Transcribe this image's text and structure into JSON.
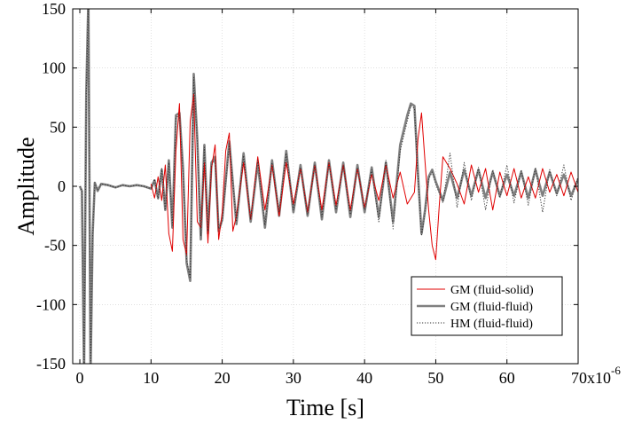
{
  "chart_data": {
    "type": "line",
    "title": "",
    "xlabel": "Time [s]",
    "ylabel": "Amplitude",
    "xlim": [
      -1,
      70
    ],
    "ylim": [
      -150,
      150
    ],
    "x_unit_exponent_label": "-6",
    "x_ticks": [
      0,
      10,
      20,
      30,
      40,
      50,
      60,
      70
    ],
    "x_tick_labels": [
      "0",
      "10",
      "20",
      "30",
      "40",
      "50",
      "60",
      "70x10"
    ],
    "y_ticks": [
      -150,
      -100,
      -50,
      0,
      50,
      100,
      150
    ],
    "y_tick_labels": [
      "-150",
      "-100",
      "-50",
      "0",
      "50",
      "100",
      "150"
    ],
    "grid": true,
    "legend_position": "bottom-right",
    "series": [
      {
        "name": "GM (fluid-solid)",
        "color": "#e00000",
        "style": "solid-thin",
        "x": [
          10.0,
          10.5,
          11.0,
          11.5,
          12.0,
          12.5,
          13.0,
          13.5,
          14.0,
          14.5,
          15.0,
          15.5,
          16.0,
          16.5,
          17.0,
          17.5,
          18.0,
          18.5,
          19.0,
          19.5,
          20.0,
          20.5,
          21.0,
          21.5,
          22.0,
          23.0,
          24.0,
          25.0,
          26.0,
          27.0,
          28.0,
          29.0,
          30.0,
          31.0,
          32.0,
          33.0,
          34.0,
          35.0,
          36.0,
          37.0,
          38.0,
          39.0,
          40.0,
          41.0,
          42.0,
          43.0,
          44.0,
          45.0,
          46.0,
          47.0,
          47.5,
          48.0,
          48.5,
          49.0,
          49.5,
          50.0,
          50.5,
          51.0,
          52.0,
          53.0,
          54.0,
          55.0,
          56.0,
          57.0,
          58.0,
          59.0,
          60.0,
          61.0,
          62.0,
          63.0,
          64.0,
          65.0,
          66.0,
          67.0,
          68.0,
          69.0,
          70.0
        ],
        "values": [
          2,
          -10,
          8,
          -12,
          18,
          -40,
          -55,
          30,
          70,
          -45,
          -58,
          55,
          78,
          -30,
          -35,
          20,
          -48,
          15,
          35,
          -45,
          -22,
          30,
          45,
          -38,
          -25,
          20,
          -28,
          25,
          -20,
          18,
          -25,
          20,
          -15,
          15,
          -22,
          18,
          -20,
          20,
          -16,
          18,
          -20,
          15,
          -18,
          10,
          -12,
          18,
          -10,
          12,
          -15,
          -5,
          40,
          62,
          20,
          -20,
          -50,
          -62,
          -15,
          25,
          15,
          2,
          -15,
          18,
          -5,
          15,
          -20,
          12,
          -8,
          15,
          -10,
          8,
          -10,
          15,
          -5,
          10,
          -8,
          12,
          -5
        ]
      },
      {
        "name": "GM (fluid-fluid)",
        "color": "#808080",
        "style": "solid-thick",
        "x": [
          0.0,
          0.3,
          0.6,
          0.9,
          1.2,
          1.5,
          1.8,
          2.1,
          2.5,
          3.0,
          4.0,
          5.0,
          6.0,
          7.0,
          8.0,
          9.0,
          10.0,
          10.5,
          11.0,
          11.5,
          12.0,
          12.5,
          13.0,
          13.5,
          14.0,
          14.5,
          15.0,
          15.5,
          16.0,
          16.5,
          17.0,
          17.5,
          18.0,
          18.5,
          19.0,
          19.5,
          20.0,
          21.0,
          22.0,
          23.0,
          24.0,
          25.0,
          26.0,
          27.0,
          28.0,
          29.0,
          30.0,
          31.0,
          32.0,
          33.0,
          34.0,
          35.0,
          36.0,
          37.0,
          38.0,
          39.0,
          40.0,
          41.0,
          42.0,
          43.0,
          44.0,
          45.0,
          46.0,
          46.5,
          47.0,
          47.5,
          48.0,
          48.5,
          49.0,
          49.5,
          50.0,
          51.0,
          52.0,
          53.0,
          54.0,
          55.0,
          56.0,
          57.0,
          58.0,
          59.0,
          60.0,
          61.0,
          62.0,
          63.0,
          64.0,
          65.0,
          66.0,
          67.0,
          68.0,
          69.0,
          70.0
        ],
        "values": [
          0,
          -4,
          -160,
          80,
          160,
          -160,
          -40,
          3,
          -4,
          2,
          1,
          -1,
          1,
          0,
          1,
          0,
          -2,
          5,
          -10,
          14,
          -20,
          22,
          -35,
          60,
          62,
          15,
          -65,
          -80,
          95,
          40,
          -45,
          35,
          -40,
          20,
          25,
          -38,
          -28,
          38,
          -32,
          28,
          -30,
          20,
          -35,
          22,
          -25,
          30,
          -22,
          18,
          -25,
          20,
          -28,
          22,
          -22,
          20,
          -26,
          18,
          -22,
          16,
          -26,
          20,
          -30,
          35,
          60,
          70,
          68,
          10,
          -40,
          -20,
          8,
          14,
          4,
          -12,
          12,
          -10,
          14,
          -8,
          14,
          -10,
          12,
          -8,
          10,
          -8,
          12,
          -10,
          14,
          -8,
          12,
          -6,
          10,
          -8,
          6
        ]
      },
      {
        "name": "HM (fluid-fluid)",
        "color": "#333333",
        "style": "dotted",
        "x": [
          0.0,
          0.3,
          0.6,
          0.9,
          1.2,
          1.5,
          1.8,
          2.1,
          2.5,
          3.0,
          4.0,
          5.0,
          6.0,
          7.0,
          8.0,
          9.0,
          10.0,
          10.5,
          11.0,
          11.5,
          12.0,
          12.5,
          13.0,
          13.5,
          14.0,
          14.5,
          15.0,
          15.5,
          16.0,
          16.5,
          17.0,
          17.5,
          18.0,
          18.5,
          19.0,
          19.5,
          20.0,
          21.0,
          22.0,
          23.0,
          24.0,
          25.0,
          26.0,
          27.0,
          28.0,
          29.0,
          30.0,
          31.0,
          32.0,
          33.0,
          34.0,
          35.0,
          36.0,
          37.0,
          38.0,
          39.0,
          40.0,
          41.0,
          42.0,
          43.0,
          44.0,
          45.0,
          46.0,
          46.5,
          47.0,
          47.5,
          48.0,
          48.5,
          49.0,
          49.5,
          50.0,
          51.0,
          52.0,
          53.0,
          54.0,
          55.0,
          56.0,
          57.0,
          58.0,
          59.0,
          60.0,
          61.0,
          62.0,
          63.0,
          64.0,
          65.0,
          66.0,
          67.0,
          68.0,
          69.0,
          70.0
        ],
        "values": [
          0,
          -4,
          -160,
          78,
          160,
          -160,
          -42,
          3,
          -3,
          2,
          1,
          -1,
          1,
          0,
          1,
          0,
          -2,
          6,
          -11,
          15,
          -20,
          20,
          -33,
          58,
          60,
          12,
          -62,
          -78,
          92,
          38,
          -42,
          33,
          -38,
          18,
          22,
          -36,
          -30,
          36,
          -30,
          26,
          -28,
          22,
          -33,
          20,
          -22,
          28,
          -20,
          16,
          -24,
          18,
          -26,
          20,
          -20,
          18,
          -24,
          16,
          -20,
          14,
          -30,
          22,
          -36,
          30,
          55,
          68,
          66,
          8,
          -42,
          -22,
          6,
          12,
          2,
          -14,
          28,
          -18,
          20,
          -12,
          16,
          -20,
          14,
          -10,
          18,
          -14,
          14,
          -16,
          16,
          -22,
          14,
          -8,
          18,
          -12,
          8
        ]
      }
    ]
  }
}
